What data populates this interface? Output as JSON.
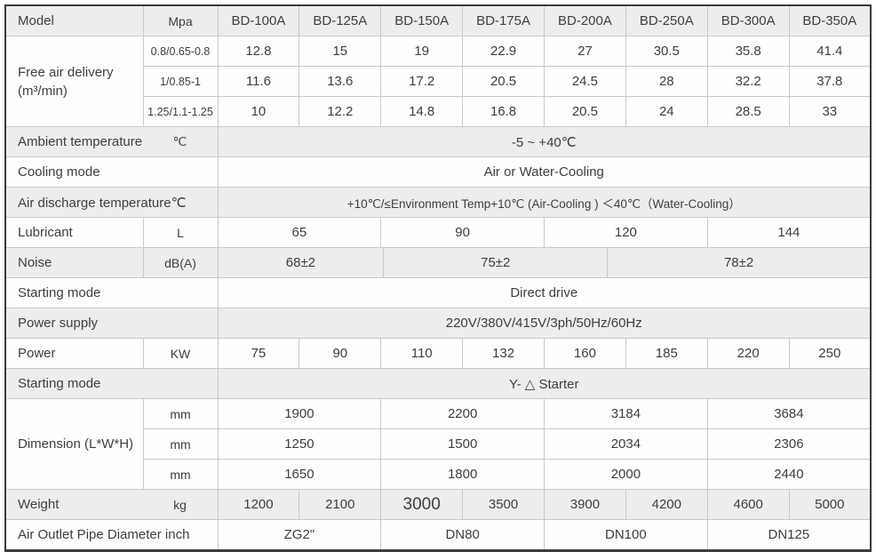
{
  "table": {
    "header": {
      "model_label": "Model",
      "unit_label": "Mpa",
      "models": [
        "BD-100A",
        "BD-125A",
        "BD-150A",
        "BD-175A",
        "BD-200A",
        "BD-250A",
        "BD-300A",
        "BD-350A"
      ]
    },
    "free_air": {
      "label_line1": "Free air delivery",
      "label_line2": "(m³/min)",
      "rows": [
        {
          "pressure": "0.8/0.65-0.8",
          "values": [
            "12.8",
            "15",
            "19",
            "22.9",
            "27",
            "30.5",
            "35.8",
            "41.4"
          ]
        },
        {
          "pressure": "1/0.85-1",
          "values": [
            "11.6",
            "13.6",
            "17.2",
            "20.5",
            "24.5",
            "28",
            "32.2",
            "37.8"
          ]
        },
        {
          "pressure": "1.25/1.1-1.25",
          "values": [
            "10",
            "12.2",
            "14.8",
            "16.8",
            "20.5",
            "24",
            "28.5",
            "33"
          ]
        }
      ]
    },
    "ambient": {
      "label": "Ambient temperature",
      "unit": "℃",
      "value": "-5 ~ +40℃"
    },
    "cooling": {
      "label": "Cooling mode",
      "value": "Air or Water-Cooling"
    },
    "discharge": {
      "label": "Air discharge temperature℃",
      "value": "+10℃/≤Environment Temp+10℃ (Air-Cooling ) ＜40℃（Water-Cooling）"
    },
    "lubricant": {
      "label": "Lubricant",
      "unit": "L",
      "values": [
        "65",
        "90",
        "120",
        "144"
      ]
    },
    "noise": {
      "label": "Noise",
      "unit": "dB(A)",
      "values": [
        "68±2",
        "75±2",
        "78±2"
      ]
    },
    "starting1": {
      "label": "Starting mode",
      "value": "Direct drive"
    },
    "power_supply": {
      "label": "Power supply",
      "value": "220V/380V/415V/3ph/50Hz/60Hz"
    },
    "power": {
      "label": "Power",
      "unit": "KW",
      "values": [
        "75",
        "90",
        "110",
        "132",
        "160",
        "185",
        "220",
        "250"
      ]
    },
    "starting2": {
      "label": "Starting mode",
      "value": "Y- △ Starter"
    },
    "dimension": {
      "label": "Dimension (L*W*H)",
      "unit": "mm",
      "rows": [
        [
          "1900",
          "2200",
          "3184",
          "3684"
        ],
        [
          "1250",
          "1500",
          "2034",
          "2306"
        ],
        [
          "1650",
          "1800",
          "2000",
          "2440"
        ]
      ]
    },
    "weight": {
      "label": "Weight",
      "unit": "kg",
      "values": [
        "1200",
        "2100",
        "3000",
        "3500",
        "3900",
        "4200",
        "4600",
        "5000"
      ]
    },
    "outlet": {
      "label": "Air Outlet Pipe Diameter inch",
      "values": [
        "ZG2\"",
        "DN80",
        "DN100",
        "DN125"
      ]
    }
  },
  "colors": {
    "row_gray": "#ededed",
    "row_white": "#fdfdfd",
    "inner_border": "#c9c9c9",
    "outer_border": "#3b3b3b",
    "text": "#3e3e3e"
  }
}
